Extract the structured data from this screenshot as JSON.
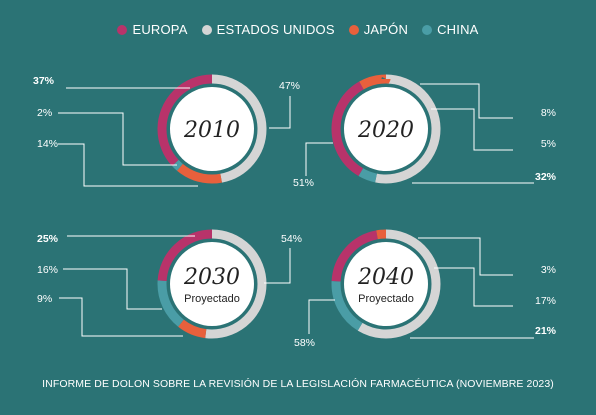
{
  "legend": [
    {
      "label": "EUROPA",
      "color": "#b8336a"
    },
    {
      "label": "ESTADOS UNIDOS",
      "color": "#d5d5d5"
    },
    {
      "label": "JAPÓN",
      "color": "#e8603c"
    },
    {
      "label": "CHINA",
      "color": "#4a9da6"
    }
  ],
  "chart_data": [
    {
      "type": "pie",
      "title": "2010",
      "subtitle": "",
      "slices": [
        {
          "label": "EUROPA",
          "value": 37
        },
        {
          "label": "ESTADOS UNIDOS",
          "value": 47
        },
        {
          "label": "JAPÓN",
          "value": 14
        },
        {
          "label": "CHINA",
          "value": 2
        }
      ]
    },
    {
      "type": "pie",
      "title": "2020",
      "subtitle": "",
      "slices": [
        {
          "label": "EUROPA",
          "value": 32
        },
        {
          "label": "ESTADOS UNIDOS",
          "value": 51
        },
        {
          "label": "JAPÓN",
          "value": 8
        },
        {
          "label": "CHINA",
          "value": 5
        }
      ]
    },
    {
      "type": "pie",
      "title": "2030",
      "subtitle": "Proyectado",
      "slices": [
        {
          "label": "EUROPA",
          "value": 25
        },
        {
          "label": "ESTADOS UNIDOS",
          "value": 54
        },
        {
          "label": "JAPÓN",
          "value": 9
        },
        {
          "label": "CHINA",
          "value": 16
        }
      ]
    },
    {
      "type": "pie",
      "title": "2040",
      "subtitle": "Proyectado",
      "slices": [
        {
          "label": "EUROPA",
          "value": 21
        },
        {
          "label": "ESTADOS UNIDOS",
          "value": 58
        },
        {
          "label": "JAPÓN",
          "value": 3
        },
        {
          "label": "CHINA",
          "value": 17
        }
      ]
    }
  ],
  "footer": "INFORME DE DOLON SOBRE LA REVISIÓN DE LA LEGISLACIÓN FARMACÉUTICA (NOVIEMBRE 2023)"
}
